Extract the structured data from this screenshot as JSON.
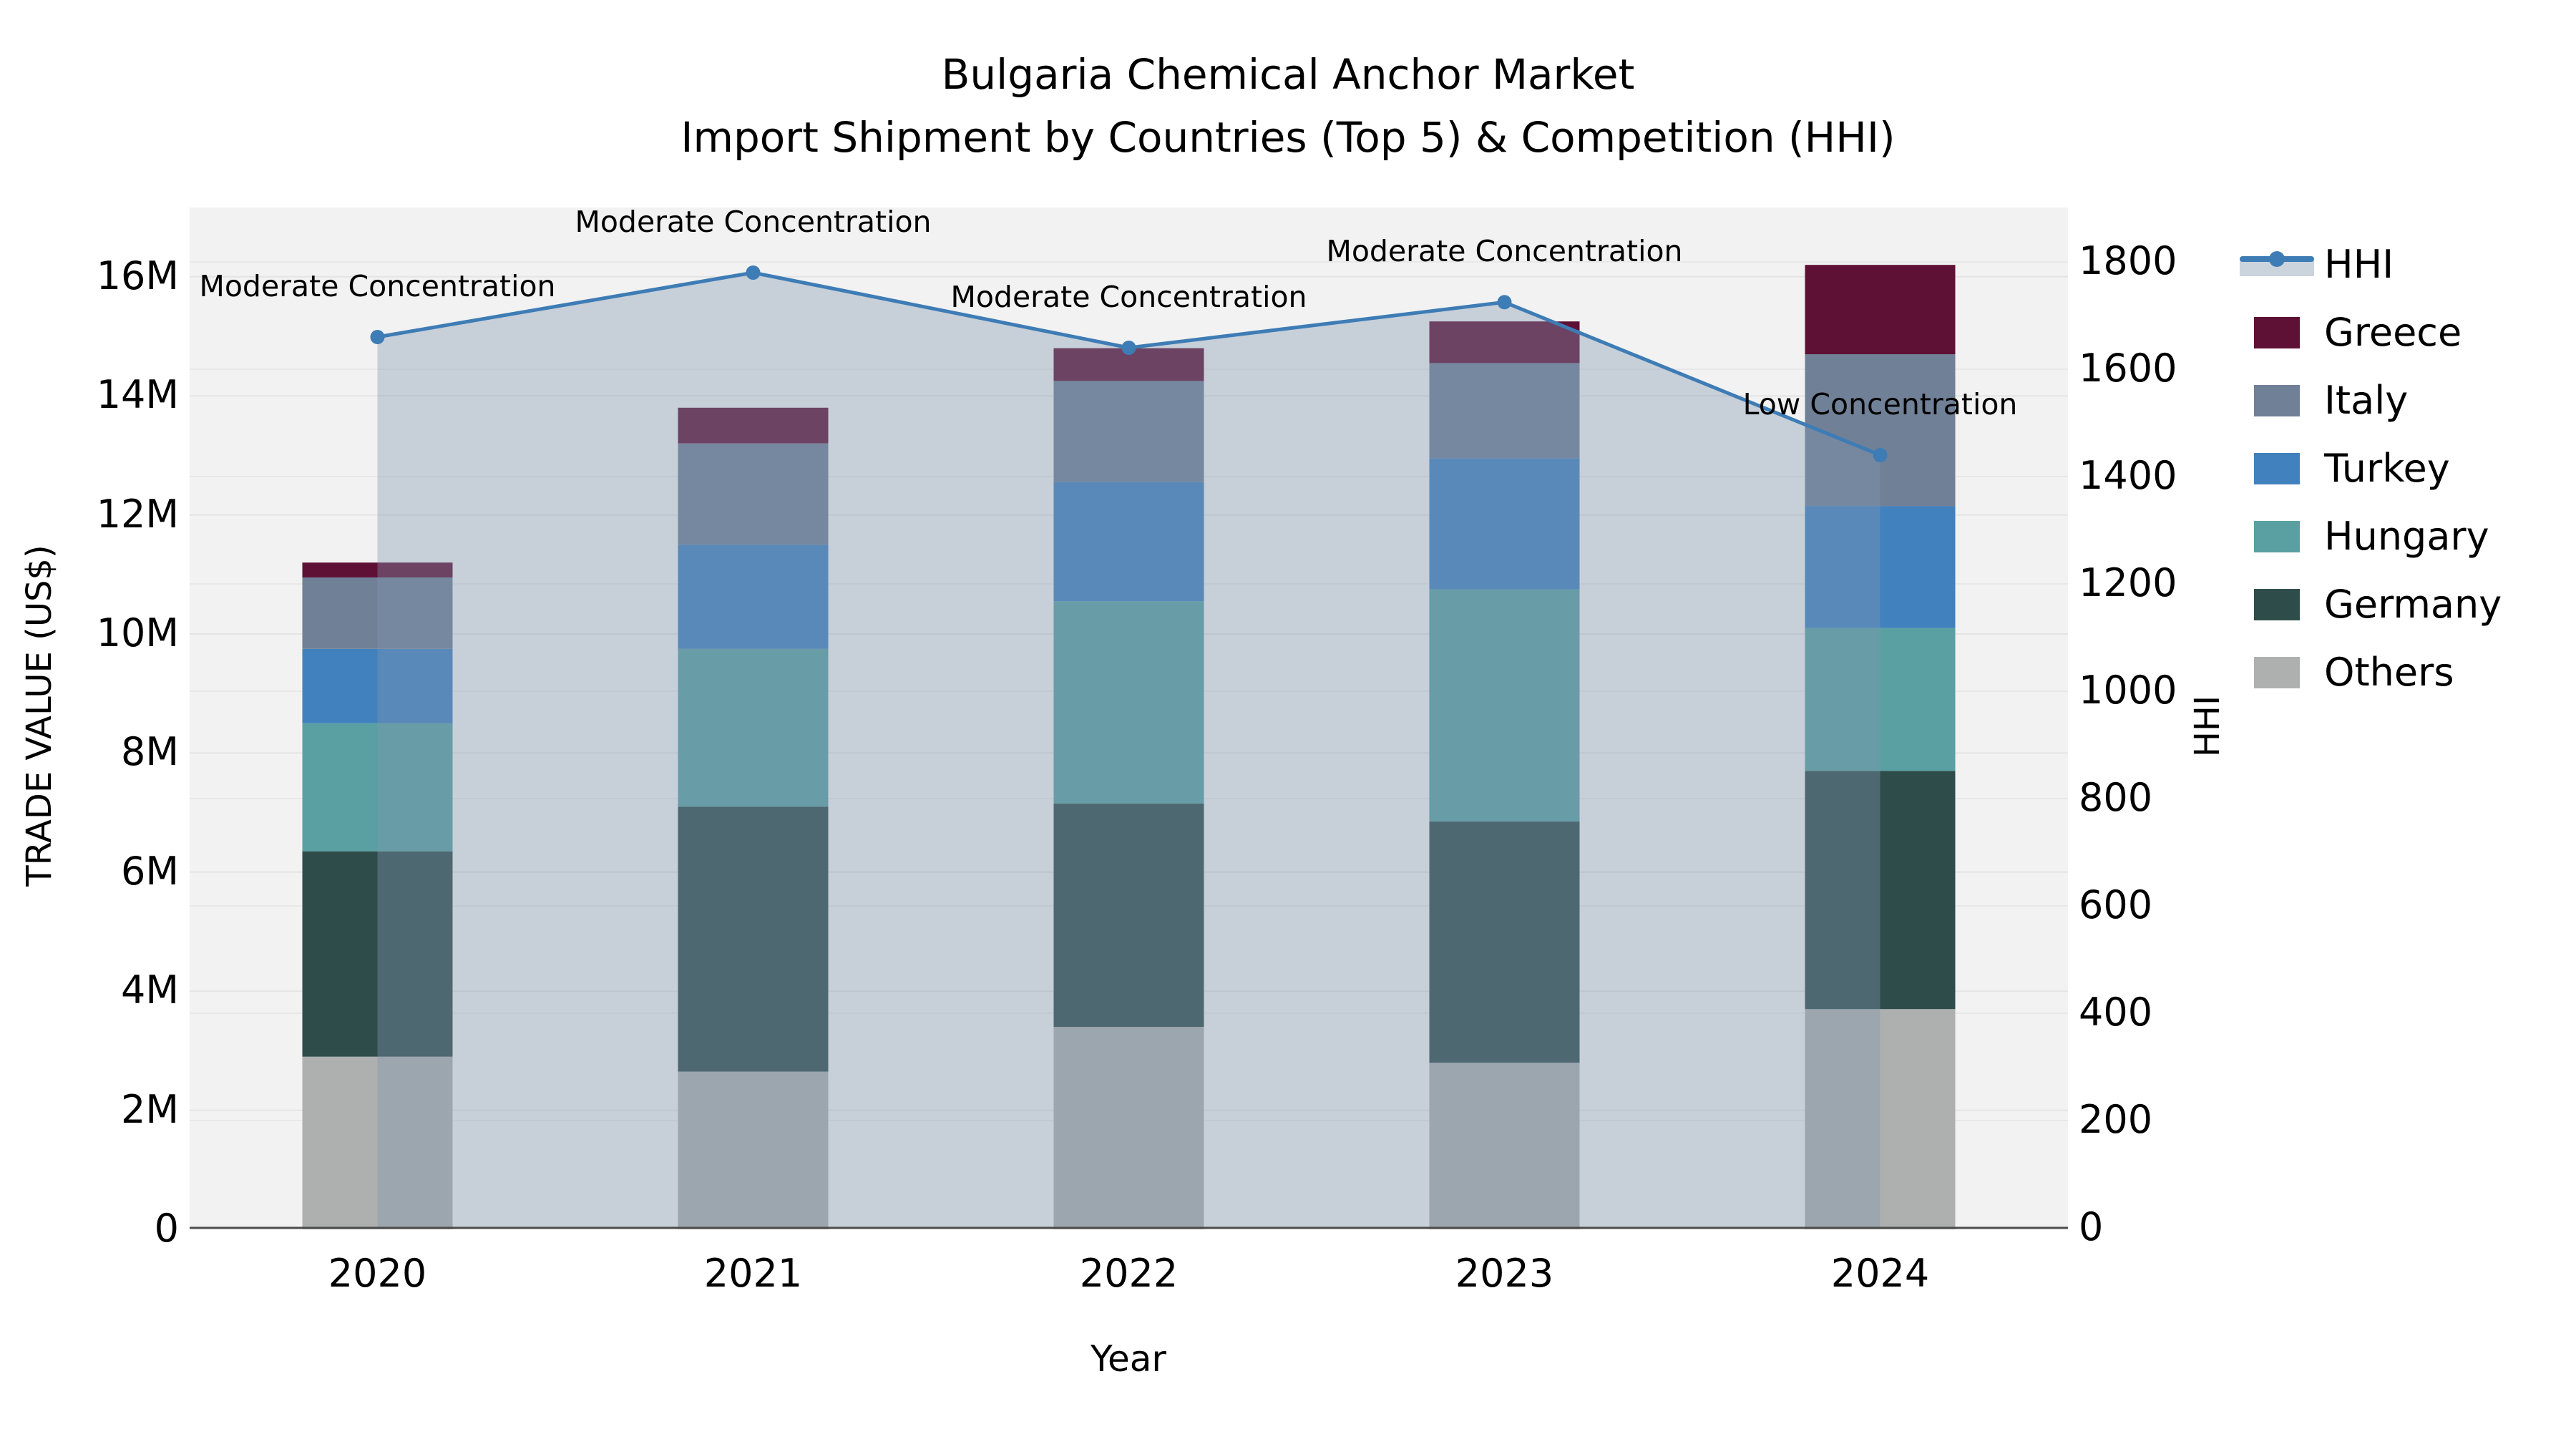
{
  "title": {
    "line1": "Bulgaria Chemical Anchor Market",
    "line2": "Import Shipment by Countries (Top 5) & Competition (HHI)"
  },
  "chart_data": {
    "type": "bar",
    "stacked": true,
    "categories": [
      "2020",
      "2021",
      "2022",
      "2023",
      "2024"
    ],
    "value_unit": "US$ millions",
    "series": [
      {
        "name": "Others",
        "color": "#adb0af",
        "values": [
          2.9,
          2.65,
          3.4,
          2.8,
          3.7
        ]
      },
      {
        "name": "Germany",
        "color": "#2e4d4a",
        "values": [
          3.45,
          4.45,
          3.75,
          4.05,
          4.0
        ]
      },
      {
        "name": "Hungary",
        "color": "#5aa0a2",
        "values": [
          2.15,
          2.65,
          3.4,
          3.9,
          2.4
        ]
      },
      {
        "name": "Turkey",
        "color": "#4181bd",
        "values": [
          1.25,
          1.75,
          2.0,
          2.2,
          2.05
        ]
      },
      {
        "name": "Italy",
        "color": "#708096",
        "values": [
          1.2,
          1.7,
          1.7,
          1.6,
          2.55
        ]
      },
      {
        "name": "Greece",
        "color": "#5f1135",
        "values": [
          0.25,
          0.6,
          0.55,
          0.7,
          1.5
        ]
      }
    ],
    "bar_totals_millions": [
      11.2,
      13.8,
      14.8,
      15.25,
      16.2
    ],
    "line": {
      "name": "HHI",
      "color": "#3e7cb5",
      "area_fill": "rgba(130,150,175,0.38)",
      "values": [
        1660,
        1780,
        1640,
        1725,
        1440
      ]
    },
    "annotations": [
      "Moderate Concentration",
      "Moderate Concentration",
      "Moderate Concentration",
      "Moderate Concentration",
      "Low Concentration"
    ],
    "y_left": {
      "title": "TRADE VALUE (US$)",
      "tick_values": [
        0,
        2,
        4,
        6,
        8,
        10,
        12,
        14,
        16
      ],
      "tick_labels": [
        "0",
        "2M",
        "4M",
        "6M",
        "8M",
        "10M",
        "12M",
        "14M",
        "16M"
      ],
      "range_millions": [
        0,
        17.2
      ]
    },
    "y_right": {
      "title": "HHI",
      "tick_values": [
        0,
        200,
        400,
        600,
        800,
        1000,
        1200,
        1400,
        1600,
        1800
      ],
      "tick_labels": [
        "0",
        "200",
        "400",
        "600",
        "800",
        "1000",
        "1200",
        "1400",
        "1600",
        "1800"
      ],
      "range": [
        0,
        1900
      ]
    },
    "x_axis": {
      "title": "Year"
    },
    "legend_order": [
      "HHI",
      "Greece",
      "Italy",
      "Turkey",
      "Hungary",
      "Germany",
      "Others"
    ],
    "plot_background": "#f2f2f2",
    "gridline_color": "#e4e4e4"
  }
}
